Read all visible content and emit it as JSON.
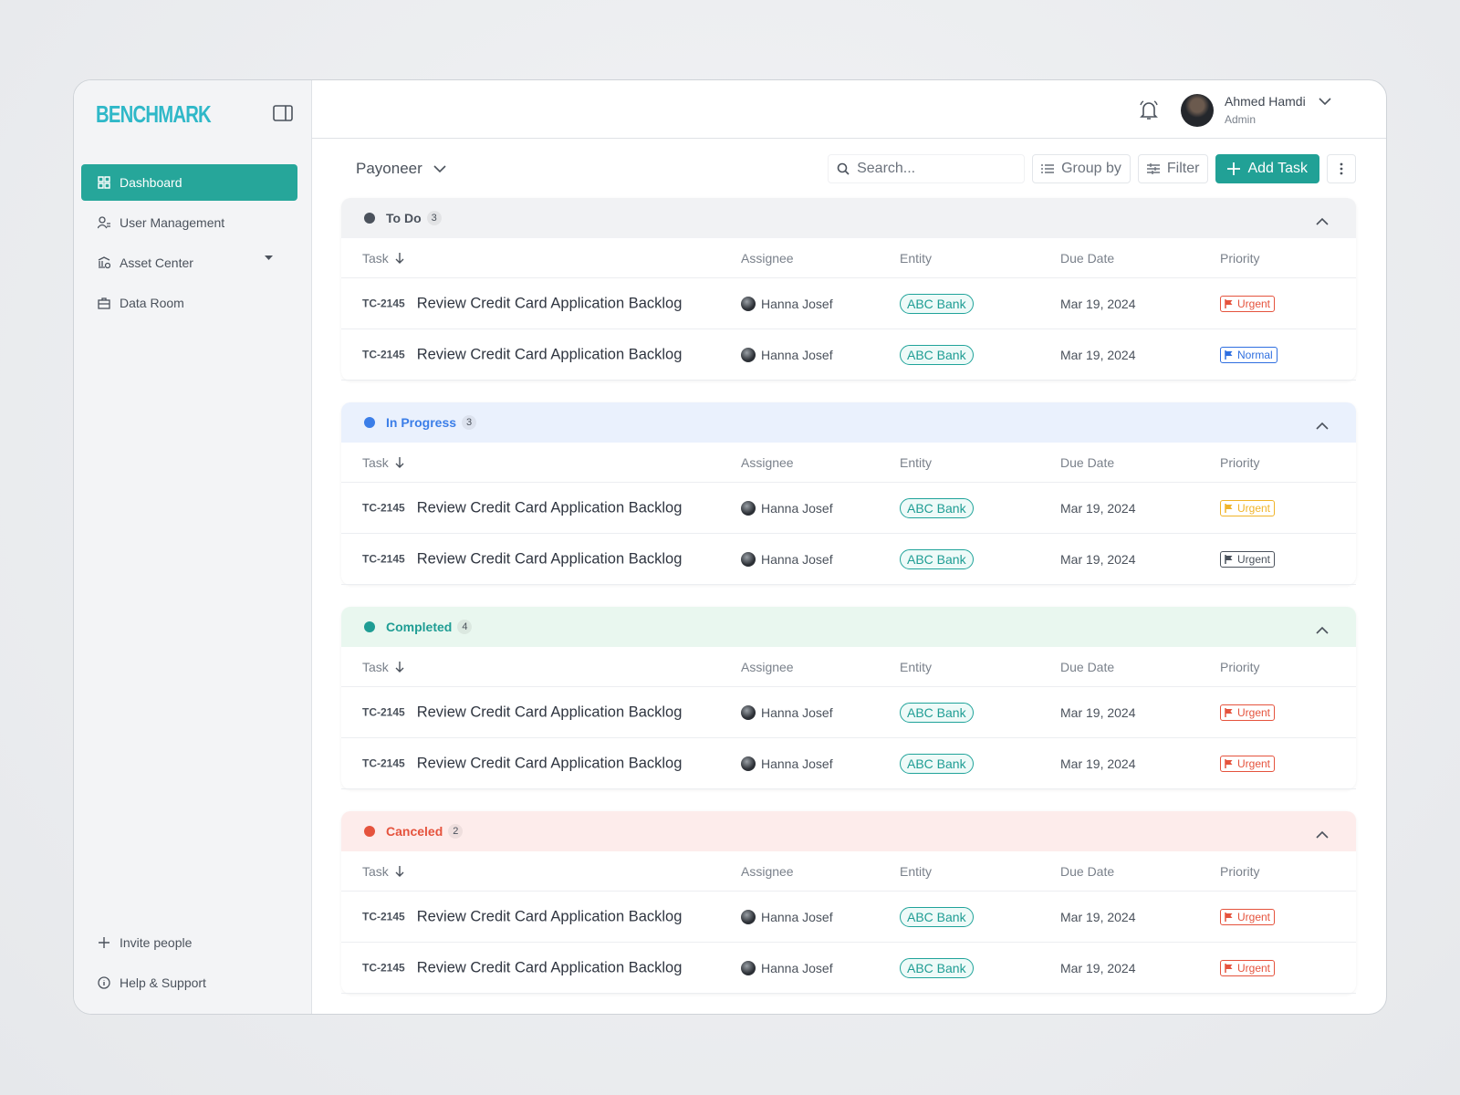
{
  "brand": "BENCHMARK",
  "nav": [
    {
      "label": "Dashboard",
      "active": true
    },
    {
      "label": "User Management",
      "active": false
    },
    {
      "label": "Asset Center",
      "active": false
    },
    {
      "label": "Data Room",
      "active": false
    }
  ],
  "footer_nav": [
    "Invite people",
    "Help & Support"
  ],
  "user": {
    "name": "Ahmed Hamdi",
    "role": "Admin"
  },
  "toolbar": {
    "workspace": "Payoneer",
    "search_placeholder": "Search...",
    "group_by": "Group by",
    "filter": "Filter",
    "add_task": "Add Task"
  },
  "columns": [
    "Task",
    "Assignee",
    "Entity",
    "Due Date",
    "Priority"
  ],
  "groups": [
    {
      "name": "To Do",
      "count": 3,
      "color": "#4b525c",
      "background": "#f1f2f4",
      "rows": [
        {
          "id": "TC-2145",
          "title": "Review Credit Card Application Backlog",
          "assignee": "Hanna Josef",
          "entity": "ABC Bank",
          "due": "Mar 19, 2024",
          "priority": "Urgent",
          "priority_color": "#e5533d"
        },
        {
          "id": "TC-2145",
          "title": "Review Credit Card Application Backlog",
          "assignee": "Hanna Josef",
          "entity": "ABC Bank",
          "due": "Mar 19, 2024",
          "priority": "Normal",
          "priority_color": "#2f6fe0"
        }
      ]
    },
    {
      "name": "In Progress",
      "count": 3,
      "color": "#3b7ee8",
      "background": "#eaf1fd",
      "rows": [
        {
          "id": "TC-2145",
          "title": "Review Credit Card Application Backlog",
          "assignee": "Hanna Josef",
          "entity": "ABC Bank",
          "due": "Mar 19, 2024",
          "priority": "Urgent",
          "priority_color": "#f0b429"
        },
        {
          "id": "TC-2145",
          "title": "Review Credit Card Application Backlog",
          "assignee": "Hanna Josef",
          "entity": "ABC Bank",
          "due": "Mar 19, 2024",
          "priority": "Urgent",
          "priority_color": "#4b525c"
        }
      ]
    },
    {
      "name": "Completed",
      "count": 4,
      "color": "#1f9d94",
      "background": "#e9f7ef",
      "rows": [
        {
          "id": "TC-2145",
          "title": "Review Credit Card Application Backlog",
          "assignee": "Hanna Josef",
          "entity": "ABC Bank",
          "due": "Mar 19, 2024",
          "priority": "Urgent",
          "priority_color": "#e5533d"
        },
        {
          "id": "TC-2145",
          "title": "Review Credit Card Application Backlog",
          "assignee": "Hanna Josef",
          "entity": "ABC Bank",
          "due": "Mar 19, 2024",
          "priority": "Urgent",
          "priority_color": "#e5533d"
        }
      ]
    },
    {
      "name": "Canceled",
      "count": 2,
      "color": "#e5533d",
      "background": "#fdeceb",
      "rows": [
        {
          "id": "TC-2145",
          "title": "Review Credit Card Application Backlog",
          "assignee": "Hanna Josef",
          "entity": "ABC Bank",
          "due": "Mar 19, 2024",
          "priority": "Urgent",
          "priority_color": "#e5533d"
        },
        {
          "id": "TC-2145",
          "title": "Review Credit Card Application Backlog",
          "assignee": "Hanna Josef",
          "entity": "ABC Bank",
          "due": "Mar 19, 2024",
          "priority": "Urgent",
          "priority_color": "#e5533d"
        }
      ]
    }
  ]
}
